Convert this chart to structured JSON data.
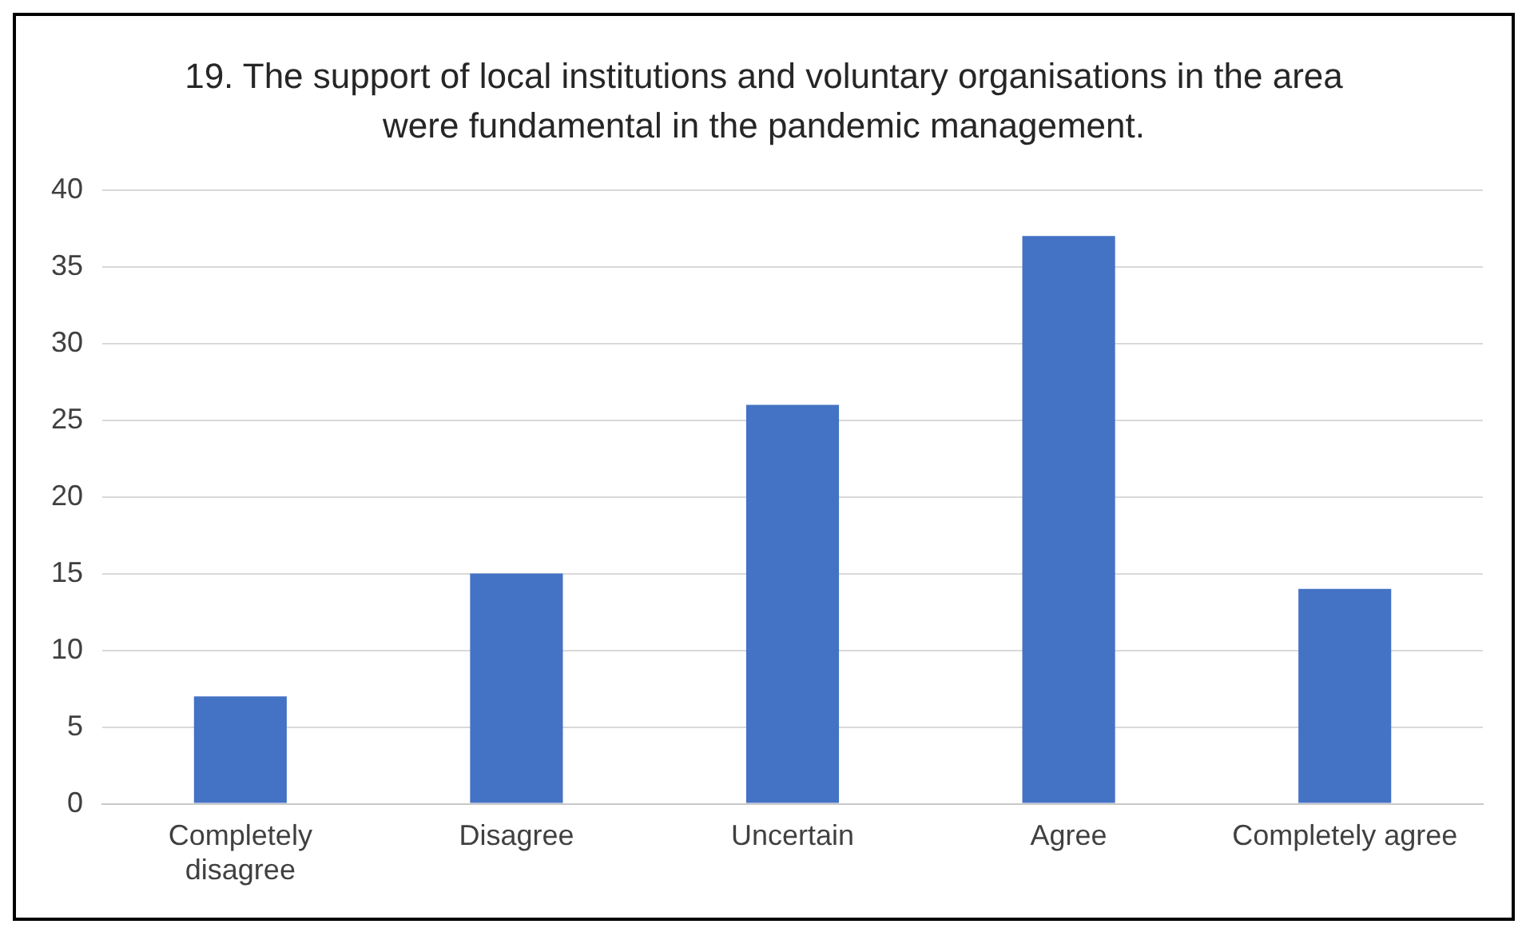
{
  "chart_data": {
    "type": "bar",
    "title": "19. The support of local institutions and voluntary organisations in the area were fundamental in the pandemic management.",
    "categories": [
      "Completely disagree",
      "Disagree",
      "Uncertain",
      "Agree",
      "Completely agree"
    ],
    "values": [
      7,
      15,
      26,
      37,
      14
    ],
    "color": "#4472c4",
    "ylim": [
      0,
      40
    ],
    "yticks": [
      0,
      5,
      10,
      15,
      20,
      25,
      30,
      35,
      40
    ],
    "grid": "y",
    "legend": false
  }
}
